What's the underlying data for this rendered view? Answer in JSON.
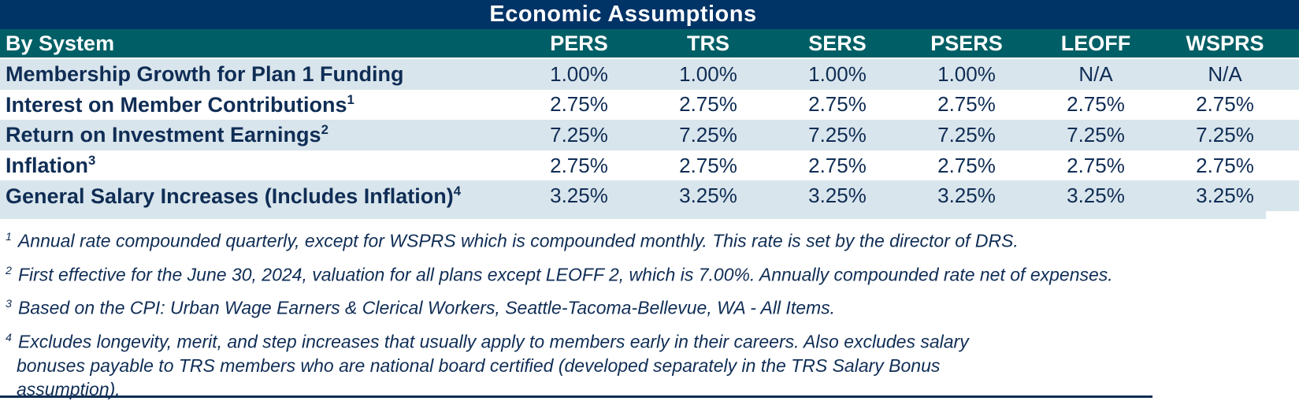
{
  "title": "Economic Assumptions",
  "colors": {
    "navy_bar": "#003366",
    "teal_header": "#005F66",
    "row_highlight": "#D9E5EC",
    "text": "#0F2D55"
  },
  "table": {
    "header": {
      "label": "By System",
      "columns": [
        "PERS",
        "TRS",
        "SERS",
        "PSERS",
        "LEOFF",
        "WSPRS"
      ]
    },
    "rows": [
      {
        "label": "Membership Growth for Plan 1 Funding",
        "sup": "",
        "values": [
          "1.00%",
          "1.00%",
          "1.00%",
          "1.00%",
          "N/A",
          "N/A"
        ]
      },
      {
        "label": "Interest on Member Contributions",
        "sup": "1",
        "values": [
          "2.75%",
          "2.75%",
          "2.75%",
          "2.75%",
          "2.75%",
          "2.75%"
        ]
      },
      {
        "label": "Return on Investment Earnings",
        "sup": "2",
        "values": [
          "7.25%",
          "7.25%",
          "7.25%",
          "7.25%",
          "7.25%",
          "7.25%"
        ]
      },
      {
        "label": "Inflation",
        "sup": "3",
        "values": [
          "2.75%",
          "2.75%",
          "2.75%",
          "2.75%",
          "2.75%",
          "2.75%"
        ]
      },
      {
        "label": "General Salary Increases (Includes Inflation)",
        "sup": "4",
        "values": [
          "3.25%",
          "3.25%",
          "3.25%",
          "3.25%",
          "3.25%",
          "3.25%"
        ]
      }
    ]
  },
  "footnotes": [
    {
      "sup": "1",
      "lines": [
        "Annual rate compounded quarterly, except for WSPRS which is compounded monthly. This rate is set by the director of DRS."
      ]
    },
    {
      "sup": "2",
      "lines": [
        "First effective for the June 30, 2024, valuation for all plans except LEOFF 2, which is 7.00%. Annually compounded rate net of expenses."
      ]
    },
    {
      "sup": "3",
      "lines": [
        "Based on the CPI: Urban Wage Earners & Clerical Workers, Seattle-Tacoma-Bellevue, WA - All Items."
      ]
    },
    {
      "sup": "4",
      "lines": [
        "Excludes longevity, merit, and step increases that usually apply to members early in their careers. Also excludes salary",
        "bonuses payable to TRS members who are national board certified (developed separately in the TRS Salary Bonus",
        "assumption)."
      ]
    }
  ]
}
